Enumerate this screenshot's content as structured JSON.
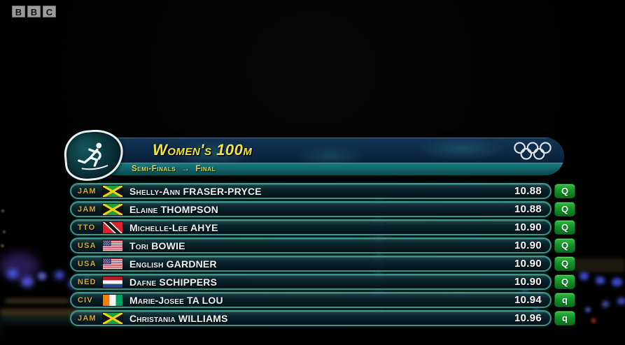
{
  "broadcaster": {
    "logo_letters": [
      "B",
      "B",
      "C"
    ]
  },
  "header": {
    "title": "Women's 100m",
    "round": "Semi-Finals",
    "round_arrow": "→",
    "next_round": "Final",
    "event_icon": "athletics-runner-pictogram",
    "rings_icon": "olympic-rings",
    "colors": {
      "title_yellow": "#f2e23d",
      "bar_blue": "#0d2a47",
      "bar_teal": "#116165"
    }
  },
  "results": {
    "columns": [
      "country_code",
      "flag",
      "athlete_name",
      "time",
      "qualification"
    ],
    "rows": [
      {
        "country_code": "JAM",
        "flag": "JAM",
        "name": "Shelly-Ann FRASER-PRYCE",
        "time": "10.88",
        "qual": "Q"
      },
      {
        "country_code": "JAM",
        "flag": "JAM",
        "name": "Elaine THOMPSON",
        "time": "10.88",
        "qual": "Q"
      },
      {
        "country_code": "TTO",
        "flag": "TTO",
        "name": "Michelle-Lee AHYE",
        "time": "10.90",
        "qual": "Q"
      },
      {
        "country_code": "USA",
        "flag": "USA",
        "name": "Tori BOWIE",
        "time": "10.90",
        "qual": "Q"
      },
      {
        "country_code": "USA",
        "flag": "USA",
        "name": "English GARDNER",
        "time": "10.90",
        "qual": "Q"
      },
      {
        "country_code": "NED",
        "flag": "NED",
        "name": "Dafne SCHIPPERS",
        "time": "10.90",
        "qual": "Q"
      },
      {
        "country_code": "CIV",
        "flag": "CIV",
        "name": "Marie-Josee TA LOU",
        "time": "10.94",
        "qual": "q"
      },
      {
        "country_code": "JAM",
        "flag": "JAM",
        "name": "Christania WILLIAMS",
        "time": "10.96",
        "qual": "q"
      }
    ],
    "colors": {
      "qualified_green": "#149328",
      "country_gold": "#d8a72e",
      "row_border_teal": "#3f9489",
      "time_white": "#ffffff"
    }
  }
}
